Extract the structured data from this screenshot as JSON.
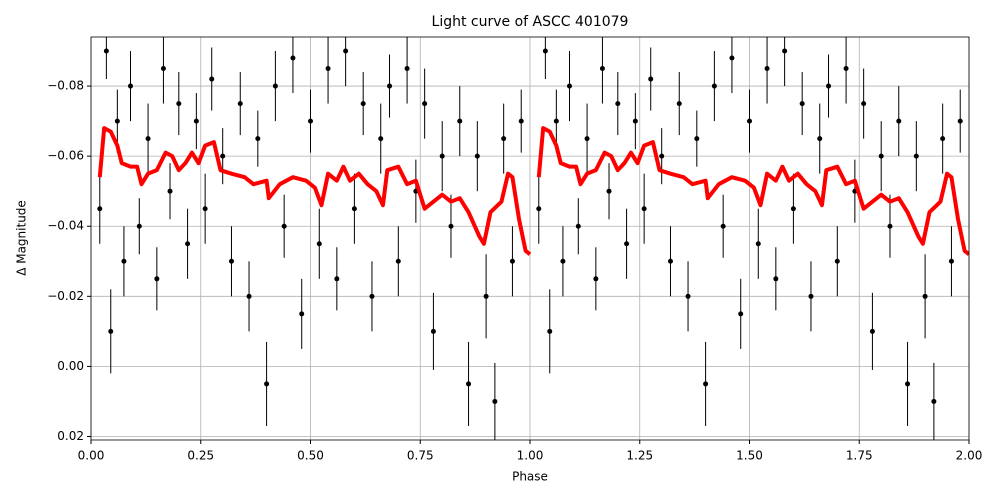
{
  "chart_data": {
    "type": "lightcurve",
    "title": "Light curve of ASCC 401079",
    "xlabel": "Phase",
    "ylabel": "Δ Magnitude",
    "xlim": [
      0,
      2
    ],
    "ylim": [
      0.021,
      -0.094
    ],
    "xticks": [
      {
        "value": 0,
        "label": "0.00"
      },
      0.25,
      {
        "value": 0.5,
        "label": "0.50"
      },
      0.75,
      {
        "value": 1,
        "label": "1.00"
      },
      1.25,
      {
        "value": 1.5,
        "label": "1.50"
      },
      1.75,
      {
        "value": 2,
        "label": "2.00"
      }
    ],
    "yticks": [
      {
        "value": -0.08,
        "label": "−0.08"
      },
      {
        "value": -0.06,
        "label": "−0.06"
      },
      {
        "value": -0.04,
        "label": "−0.04"
      },
      {
        "value": -0.02,
        "label": "−0.02"
      },
      {
        "value": 0,
        "label": "0.00"
      },
      {
        "value": 0.02,
        "label": "0.02"
      }
    ],
    "grid": true,
    "points": {
      "color": "#000000",
      "x": [
        0.02,
        0.035,
        0.045,
        0.06,
        0.075,
        0.09,
        0.11,
        0.13,
        0.15,
        0.165,
        0.18,
        0.2,
        0.22,
        0.24,
        0.26,
        0.275,
        0.3,
        0.32,
        0.34,
        0.36,
        0.38,
        0.4,
        0.42,
        0.44,
        0.46,
        0.48,
        0.5,
        0.52,
        0.54,
        0.56,
        0.58,
        0.6,
        0.62,
        0.64,
        0.66,
        0.68,
        0.7,
        0.72,
        0.74,
        0.76,
        0.78,
        0.8,
        0.82,
        0.84,
        0.86,
        0.88,
        0.9,
        0.92,
        0.94,
        0.96,
        0.98,
        1.02,
        1.035,
        1.045,
        1.06,
        1.075,
        1.09,
        1.11,
        1.13,
        1.15,
        1.165,
        1.18,
        1.2,
        1.22,
        1.24,
        1.26,
        1.275,
        1.3,
        1.32,
        1.34,
        1.36,
        1.38,
        1.4,
        1.42,
        1.44,
        1.46,
        1.48,
        1.5,
        1.52,
        1.54,
        1.56,
        1.58,
        1.6,
        1.62,
        1.64,
        1.66,
        1.68,
        1.7,
        1.72,
        1.74,
        1.76,
        1.78,
        1.8,
        1.82,
        1.84,
        1.86,
        1.88,
        1.9,
        1.92,
        1.94,
        1.96,
        1.98
      ],
      "values": [
        -0.045,
        -0.09,
        -0.01,
        -0.07,
        -0.03,
        -0.08,
        -0.04,
        -0.065,
        -0.025,
        -0.085,
        -0.05,
        -0.075,
        -0.035,
        -0.07,
        -0.045,
        -0.082,
        -0.06,
        -0.03,
        -0.075,
        -0.02,
        -0.065,
        0.005,
        -0.08,
        -0.04,
        -0.088,
        -0.015,
        -0.07,
        -0.035,
        -0.085,
        -0.025,
        -0.09,
        -0.045,
        -0.075,
        -0.02,
        -0.065,
        -0.08,
        -0.03,
        -0.085,
        -0.05,
        -0.075,
        -0.01,
        -0.06,
        -0.04,
        -0.07,
        0.005,
        -0.06,
        -0.02,
        0.01,
        -0.065,
        -0.03,
        -0.07,
        -0.045,
        -0.09,
        -0.01,
        -0.07,
        -0.03,
        -0.08,
        -0.04,
        -0.065,
        -0.025,
        -0.085,
        -0.05,
        -0.075,
        -0.035,
        -0.07,
        -0.045,
        -0.082,
        -0.06,
        -0.03,
        -0.075,
        -0.02,
        -0.065,
        0.005,
        -0.08,
        -0.04,
        -0.088,
        -0.015,
        -0.07,
        -0.035,
        -0.085,
        -0.025,
        -0.09,
        -0.045,
        -0.075,
        -0.02,
        -0.065,
        -0.08,
        -0.03,
        -0.085,
        -0.05,
        -0.075,
        -0.01,
        -0.06,
        -0.04,
        -0.07,
        0.005,
        -0.06,
        -0.02,
        0.01,
        -0.065,
        -0.03,
        -0.07
      ],
      "errors": [
        0.01,
        0.008,
        0.012,
        0.009,
        0.01,
        0.01,
        0.008,
        0.01,
        0.009,
        0.01,
        0.008,
        0.009,
        0.01,
        0.008,
        0.01,
        0.009,
        0.008,
        0.01,
        0.009,
        0.01,
        0.008,
        0.012,
        0.01,
        0.009,
        0.01,
        0.01,
        0.009,
        0.01,
        0.01,
        0.009,
        0.01,
        0.01,
        0.009,
        0.01,
        0.01,
        0.009,
        0.01,
        0.01,
        0.009,
        0.01,
        0.011,
        0.01,
        0.009,
        0.01,
        0.012,
        0.01,
        0.012,
        0.011,
        0.01,
        0.01,
        0.009,
        0.01,
        0.008,
        0.012,
        0.009,
        0.01,
        0.01,
        0.008,
        0.01,
        0.009,
        0.01,
        0.008,
        0.009,
        0.01,
        0.008,
        0.01,
        0.009,
        0.008,
        0.01,
        0.009,
        0.01,
        0.008,
        0.012,
        0.01,
        0.009,
        0.01,
        0.01,
        0.009,
        0.01,
        0.01,
        0.009,
        0.01,
        0.01,
        0.009,
        0.01,
        0.01,
        0.009,
        0.01,
        0.01,
        0.009,
        0.01,
        0.011,
        0.01,
        0.009,
        0.01,
        0.012,
        0.01,
        0.012,
        0.011,
        0.01,
        0.01,
        0.009
      ]
    },
    "curve": {
      "color": "#ff0000",
      "x": [
        0.02,
        0.03,
        0.045,
        0.06,
        0.07,
        0.09,
        0.105,
        0.115,
        0.13,
        0.15,
        0.17,
        0.185,
        0.2,
        0.215,
        0.23,
        0.245,
        0.26,
        0.28,
        0.295,
        0.32,
        0.35,
        0.37,
        0.4,
        0.405,
        0.43,
        0.46,
        0.49,
        0.51,
        0.525,
        0.54,
        0.56,
        0.575,
        0.59,
        0.61,
        0.63,
        0.65,
        0.665,
        0.675,
        0.7,
        0.72,
        0.74,
        0.76,
        0.78,
        0.8,
        0.82,
        0.84,
        0.86,
        0.885,
        0.895,
        0.91,
        0.935,
        0.95,
        0.96,
        0.975,
        0.99,
        1.0,
        null,
        1.02,
        1.03,
        1.045,
        1.06,
        1.07,
        1.09,
        1.105,
        1.115,
        1.13,
        1.15,
        1.17,
        1.185,
        1.2,
        1.215,
        1.23,
        1.245,
        1.26,
        1.28,
        1.295,
        1.32,
        1.35,
        1.37,
        1.4,
        1.405,
        1.43,
        1.46,
        1.49,
        1.51,
        1.525,
        1.54,
        1.56,
        1.575,
        1.59,
        1.61,
        1.63,
        1.65,
        1.665,
        1.675,
        1.7,
        1.72,
        1.74,
        1.76,
        1.78,
        1.8,
        1.82,
        1.84,
        1.86,
        1.885,
        1.895,
        1.91,
        1.935,
        1.95,
        1.96,
        1.975,
        1.99,
        2.0
      ],
      "values": [
        -0.054,
        -0.068,
        -0.067,
        -0.063,
        -0.058,
        -0.057,
        -0.057,
        -0.052,
        -0.055,
        -0.056,
        -0.061,
        -0.06,
        -0.056,
        -0.058,
        -0.061,
        -0.058,
        -0.063,
        -0.064,
        -0.056,
        -0.055,
        -0.054,
        -0.052,
        -0.053,
        -0.048,
        -0.052,
        -0.054,
        -0.053,
        -0.051,
        -0.046,
        -0.055,
        -0.053,
        -0.057,
        -0.053,
        -0.055,
        -0.052,
        -0.05,
        -0.046,
        -0.056,
        -0.057,
        -0.052,
        -0.053,
        -0.045,
        -0.047,
        -0.049,
        -0.047,
        -0.048,
        -0.044,
        -0.037,
        -0.035,
        -0.044,
        -0.047,
        -0.055,
        -0.054,
        -0.042,
        -0.033,
        -0.032,
        null,
        -0.054,
        -0.068,
        -0.067,
        -0.063,
        -0.058,
        -0.057,
        -0.057,
        -0.052,
        -0.055,
        -0.056,
        -0.061,
        -0.06,
        -0.056,
        -0.058,
        -0.061,
        -0.058,
        -0.063,
        -0.064,
        -0.056,
        -0.055,
        -0.054,
        -0.052,
        -0.053,
        -0.048,
        -0.052,
        -0.054,
        -0.053,
        -0.051,
        -0.046,
        -0.055,
        -0.053,
        -0.057,
        -0.053,
        -0.055,
        -0.052,
        -0.05,
        -0.046,
        -0.056,
        -0.057,
        -0.052,
        -0.053,
        -0.045,
        -0.047,
        -0.049,
        -0.047,
        -0.048,
        -0.044,
        -0.037,
        -0.035,
        -0.044,
        -0.047,
        -0.055,
        -0.054,
        -0.042,
        -0.033,
        -0.032
      ]
    }
  }
}
